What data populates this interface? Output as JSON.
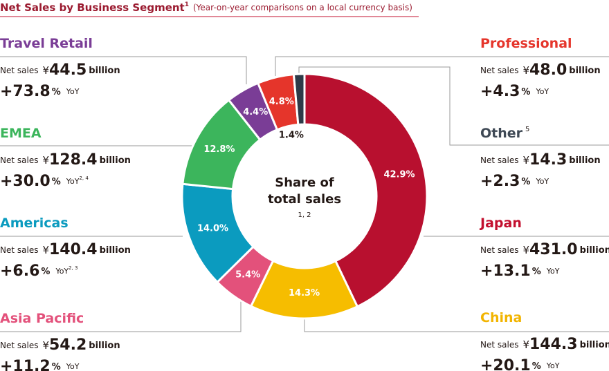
{
  "chart_data": {
    "type": "pie",
    "donut": true,
    "title": "Net Sales by Business Segment",
    "title_note": "1",
    "subtitle": "(Year-on-year comparisons on a local currency basis)",
    "center_label": [
      "Share of",
      "total sales"
    ],
    "center_note": "1, 2",
    "categories": [
      "Japan",
      "China",
      "Asia Pacific",
      "Americas",
      "EMEA",
      "Travel Retail",
      "Professional",
      "Other"
    ],
    "values": [
      42.9,
      14.3,
      5.4,
      14.0,
      12.8,
      4.4,
      4.8,
      1.4
    ],
    "value_labels": [
      "42.9%",
      "14.3%",
      "5.4%",
      "14.0%",
      "12.8%",
      "4.4%",
      "4.8%",
      "1.4%"
    ],
    "colors": [
      "#b8102f",
      "#f6bd00",
      "#e3517b",
      "#0b9bbf",
      "#3cb55c",
      "#7a3d96",
      "#e5352b",
      "#2e3a48"
    ],
    "name_colors": [
      "#c3102f",
      "#f2b400",
      "#e3517b",
      "#0b9bbf",
      "#3cb55c",
      "#7a3d96",
      "#e5352b",
      "#3f4955"
    ],
    "net_sales_label": "Net sales",
    "currency": "¥",
    "unit": "billion",
    "percent": "%",
    "yoy": "YoY",
    "panels": [
      {
        "sales": "431.0",
        "growth": "+13.1"
      },
      {
        "sales": "144.3",
        "growth": "+20.1"
      },
      {
        "sales": "54.2",
        "growth": "+11.2"
      },
      {
        "sales": "140.4",
        "growth": "+6.6",
        "yoy_note": "2, 3"
      },
      {
        "sales": "128.4",
        "growth": "+30.0",
        "yoy_note": "2, 4"
      },
      {
        "sales": "44.5",
        "growth": "+73.8"
      },
      {
        "sales": "48.0",
        "growth": "+4.3"
      },
      {
        "sales": "14.3",
        "growth": "+2.3",
        "name_note": "5"
      }
    ]
  }
}
